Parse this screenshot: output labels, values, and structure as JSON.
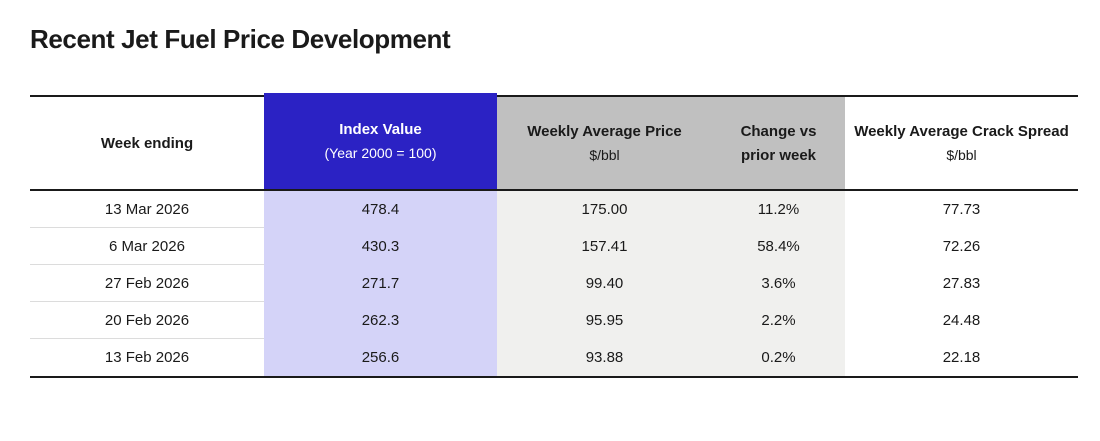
{
  "chart_data": {
    "type": "table",
    "title": "Recent Jet Fuel Price Development",
    "columns": [
      {
        "label": "Week ending",
        "sublabel": ""
      },
      {
        "label": "Index Value",
        "sublabel": "(Year 2000 = 100)"
      },
      {
        "label": "Weekly Average Price",
        "sublabel": "$/bbl"
      },
      {
        "label": "Change vs",
        "sublabel": "prior week"
      },
      {
        "label": "Weekly Average Crack Spread",
        "sublabel": "$/bbl"
      }
    ],
    "rows": [
      [
        "13 Mar 2026",
        "478.4",
        "175.00",
        "11.2%",
        "77.73"
      ],
      [
        "6 Mar 2026",
        "430.3",
        "157.41",
        "58.4%",
        "72.26"
      ],
      [
        "27 Feb 2026",
        "271.7",
        "99.40",
        "3.6%",
        "27.83"
      ],
      [
        "20 Feb 2026",
        "262.3",
        "95.95",
        "2.2%",
        "24.48"
      ],
      [
        "13 Feb 2026",
        "256.6",
        "93.88",
        "0.2%",
        "22.18"
      ]
    ],
    "layout": {
      "grid": "off",
      "row_dividers": "first column only",
      "highlight_column": "Index Value"
    }
  },
  "colors": {
    "accent_blue": "#2B22C4",
    "index_column_tint": "#D4D3F8",
    "header_gray": "#C0C0C0",
    "body_gray": "#F0F0EE",
    "border_dark": "#1A1A1A",
    "row_divider": "#DCDCDC",
    "text": "#1A1A1A",
    "header_text_on_blue": "#FFFFFF"
  }
}
